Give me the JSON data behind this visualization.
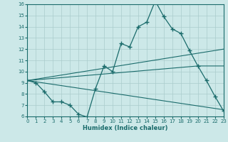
{
  "xlabel": "Humidex (Indice chaleur)",
  "xlim": [
    0,
    23
  ],
  "ylim": [
    6,
    16
  ],
  "xticks": [
    0,
    1,
    2,
    3,
    4,
    5,
    6,
    7,
    8,
    9,
    10,
    11,
    12,
    13,
    14,
    15,
    16,
    17,
    18,
    19,
    20,
    21,
    22,
    23
  ],
  "yticks": [
    6,
    7,
    8,
    9,
    10,
    11,
    12,
    13,
    14,
    15,
    16
  ],
  "bg_color": "#cce8e8",
  "line_color": "#1a6b6b",
  "grid_color": "#aacccc",
  "lines": [
    {
      "x": [
        0,
        1,
        2,
        3,
        4,
        5,
        6,
        7,
        8,
        9,
        10,
        11,
        12,
        13,
        14,
        15,
        16,
        17,
        18,
        19,
        20,
        21,
        22,
        23
      ],
      "y": [
        9.2,
        9.0,
        8.2,
        7.3,
        7.3,
        7.0,
        6.2,
        5.95,
        8.5,
        10.5,
        10.0,
        12.5,
        12.2,
        14.0,
        14.4,
        16.3,
        14.9,
        13.8,
        13.4,
        11.9,
        10.5,
        9.2,
        7.8,
        6.5
      ],
      "marker": true
    },
    {
      "x": [
        0,
        23
      ],
      "y": [
        9.2,
        12.0
      ],
      "marker": false
    },
    {
      "x": [
        0,
        20,
        23
      ],
      "y": [
        9.2,
        10.5,
        10.5
      ],
      "marker": false
    },
    {
      "x": [
        0,
        23
      ],
      "y": [
        9.2,
        6.6
      ],
      "marker": false
    }
  ]
}
